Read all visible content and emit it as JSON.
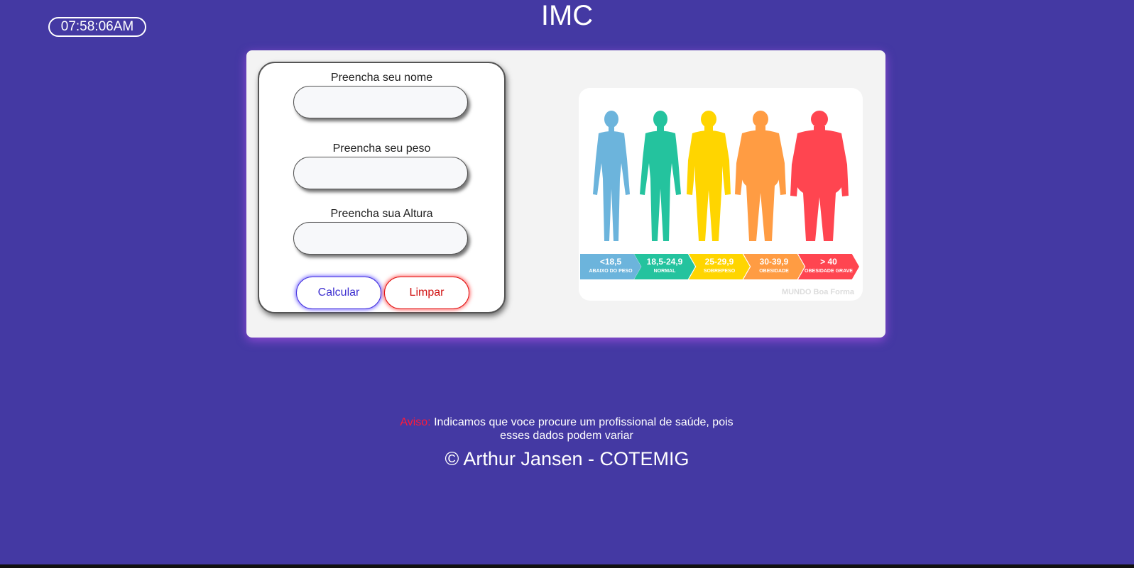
{
  "clock": {
    "time": "07:58:06AM"
  },
  "header": {
    "title": "IMC"
  },
  "form": {
    "name_label": "Preencha seu nome",
    "name_value": "",
    "weight_label": "Preencha seu peso",
    "weight_value": "",
    "height_label": "Preencha sua Altura",
    "height_value": "",
    "calculate_label": "Calcular",
    "clear_label": "Limpar"
  },
  "bmi_image": {
    "categories": [
      {
        "range": "<18,5",
        "label": "ABAIXO DO PESO",
        "color": "#6cb4dc"
      },
      {
        "range": "18,5-24,9",
        "label": "NORMAL",
        "color": "#24c39e"
      },
      {
        "range": "25-29,9",
        "label": "SOBREPESO",
        "color": "#ffd500"
      },
      {
        "range": "30-39,9",
        "label": "OBESIDADE",
        "color": "#ff9c43"
      },
      {
        "range": "> 40",
        "label": "OBESIDADE GRAVE",
        "color": "#ff4550"
      }
    ],
    "watermark": "MUNDO Boa Forma"
  },
  "footer": {
    "warning_label": "Aviso:",
    "warning_text": "Indicamos que voce procure um profissional de saúde, pois esses dados podem variar",
    "copyright": "© Arthur Jansen - COTEMIG"
  },
  "colors": {
    "background": "#4439a3",
    "card": "#f3f3f3",
    "calculate": "#3d2fd0",
    "clear": "#d01010",
    "warning": "#ff1a3a"
  }
}
